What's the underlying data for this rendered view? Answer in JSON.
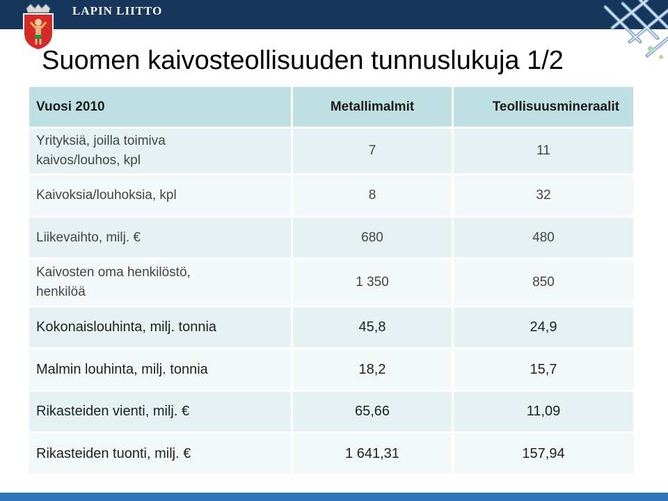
{
  "header": {
    "brand_name": "LAPIN LIITTO",
    "logo_icon": "lapland-coat-of-arms-icon",
    "decor_icon": "ice-crystal-decoration-icon",
    "bar_color": "#16365c"
  },
  "title": "Suomen kaivosteollisuuden tunnuslukuja 1/2",
  "table": {
    "headers": [
      "Vuosi 2010",
      "Metallimalmit",
      "Teollisuusmineraalit"
    ],
    "rows": [
      {
        "label": "Yrityksiä, joilla toimiva kaivos/louhos, kpl",
        "metal": "7",
        "industrial": "11"
      },
      {
        "label": "Kaivoksia/louhoksia, kpl",
        "metal": "8",
        "industrial": "32"
      },
      {
        "label": "Liikevaihto, milj. €",
        "metal": "680",
        "industrial": "480"
      },
      {
        "label": "Kaivosten oma henkilöstö, henkilöä",
        "metal": "1 350",
        "industrial": "850"
      },
      {
        "label": "Kokonaislouhinta, milj. tonnia",
        "metal": "45,8",
        "industrial": "24,9"
      },
      {
        "label": "Malmin louhinta, milj. tonnia",
        "metal": "18,2",
        "industrial": "15,7"
      },
      {
        "label": "Rikasteiden vienti, milj. €",
        "metal": "65,66",
        "industrial": "11,09"
      },
      {
        "label": "Rikasteiden tuonti, milj. €",
        "metal": "1 641,31",
        "industrial": "157,94"
      }
    ]
  },
  "colors": {
    "header_cell": "#bfe0e3",
    "row_odd": "#e5f1f2",
    "row_even": "#f3f8f9",
    "footer_bar": "#2e75b6"
  }
}
